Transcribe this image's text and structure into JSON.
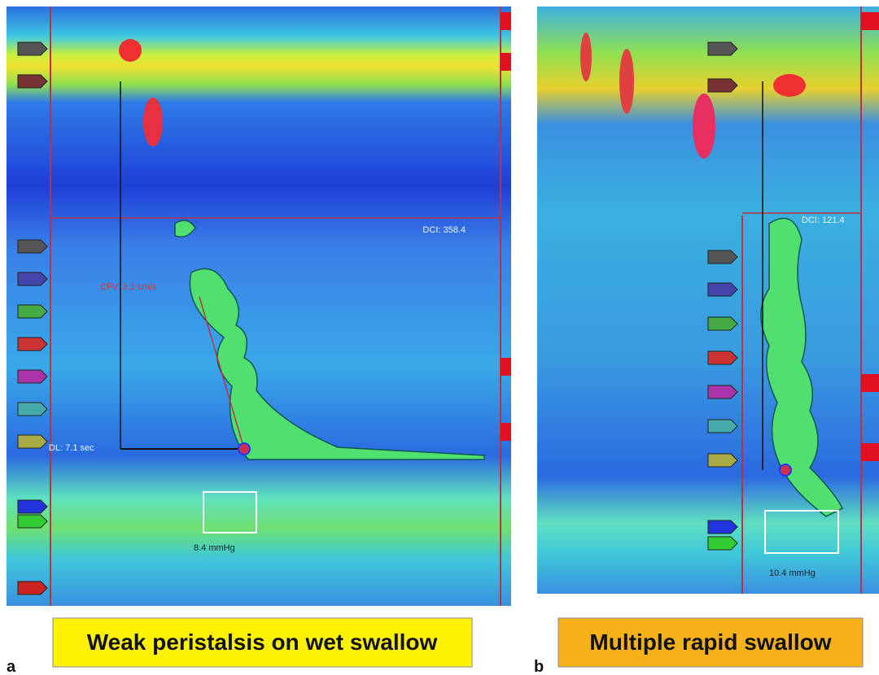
{
  "panels": [
    {
      "letter": "a",
      "caption": "Weak peristalsis on wet swallow",
      "annotations": {
        "dci": "DCI: 358.4",
        "cfv": "CFV: 3.1 cm/s",
        "dl": "DL: 7.1 sec",
        "pressure": "8.4 mmHg"
      }
    },
    {
      "letter": "b",
      "caption": "Multiple rapid swallow",
      "annotations": {
        "dci": "DCI: 121.4",
        "pressure": "10.4 mmHg"
      }
    }
  ]
}
